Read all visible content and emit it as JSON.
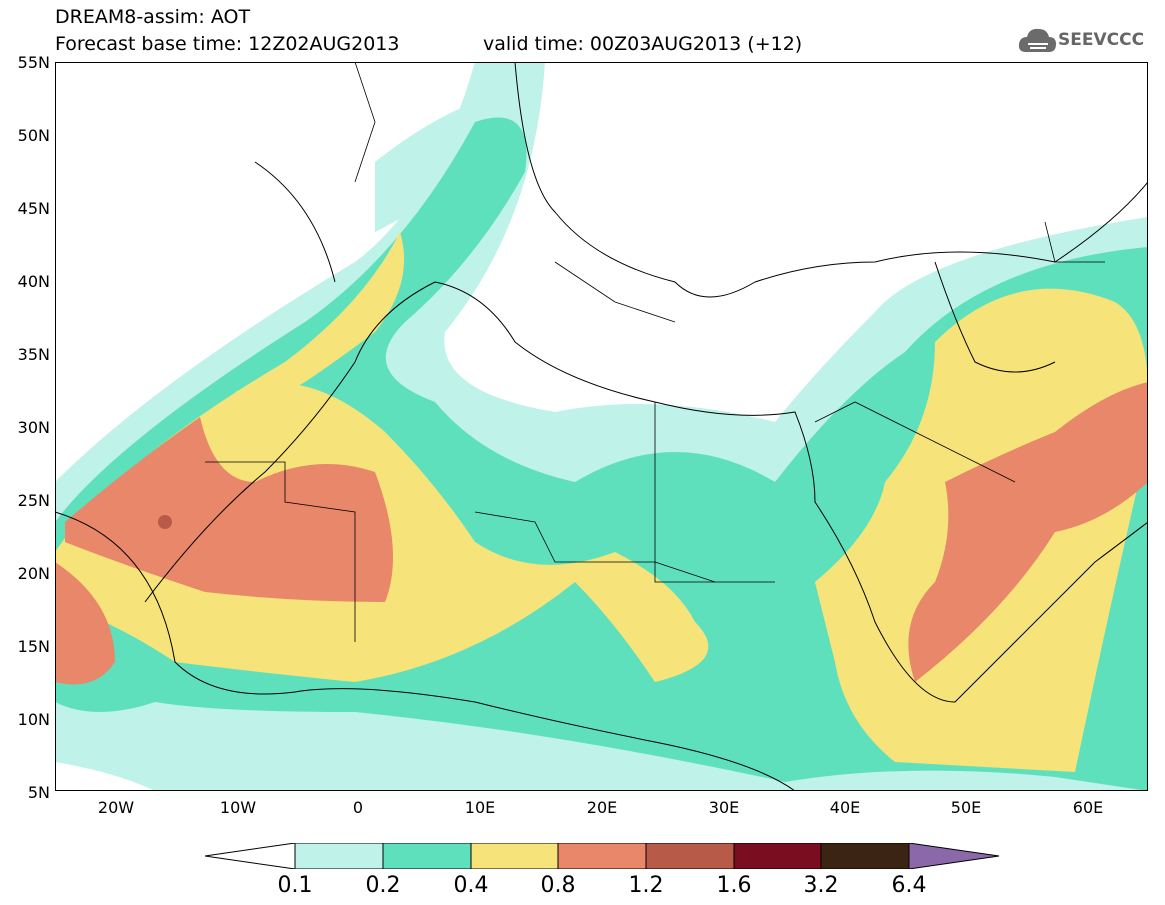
{
  "header": {
    "model_line": "DREAM8-assim: AOT",
    "base_time": "Forecast base time: 12Z02AUG2013",
    "valid_time": "valid time: 00Z03AUG2013 (+12)",
    "logo_text": "SEEVCCC"
  },
  "axes": {
    "lat_labels": [
      "55N",
      "50N",
      "45N",
      "40N",
      "35N",
      "30N",
      "25N",
      "20N",
      "15N",
      "10N",
      "5N"
    ],
    "lon_labels": [
      "20W",
      "10W",
      "0",
      "10E",
      "20E",
      "30E",
      "40E",
      "50E",
      "60E"
    ]
  },
  "legend": {
    "thresholds": [
      "0.1",
      "0.2",
      "0.4",
      "0.8",
      "1.2",
      "1.6",
      "3.2",
      "6.4"
    ],
    "colors": [
      "#ffffff",
      "#bff2e8",
      "#5fe0bd",
      "#f6e47a",
      "#e8876a",
      "#b85a48",
      "#7a0d20",
      "#3b2414",
      "#8b68a9"
    ]
  }
}
